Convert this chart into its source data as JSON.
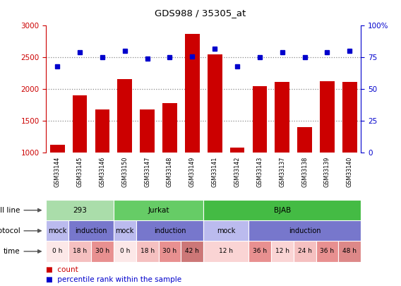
{
  "title": "GDS988 / 35305_at",
  "samples": [
    "GSM33144",
    "GSM33145",
    "GSM33146",
    "GSM33150",
    "GSM33147",
    "GSM33148",
    "GSM33149",
    "GSM33141",
    "GSM33142",
    "GSM33143",
    "GSM33137",
    "GSM33138",
    "GSM33139",
    "GSM33140"
  ],
  "counts": [
    1120,
    1900,
    1680,
    2160,
    1680,
    1780,
    2870,
    2550,
    1080,
    2050,
    2120,
    1400,
    2130,
    2120
  ],
  "percentile_ranks": [
    68,
    79,
    75,
    80,
    74,
    75,
    76,
    82,
    68,
    75,
    79,
    75,
    79,
    80
  ],
  "bar_color": "#cc0000",
  "dot_color": "#0000cc",
  "ylim_left": [
    1000,
    3000
  ],
  "ylim_right": [
    0,
    100
  ],
  "yticks_left": [
    1000,
    1500,
    2000,
    2500,
    3000
  ],
  "yticks_right": [
    0,
    25,
    50,
    75,
    100
  ],
  "hlines": [
    1500,
    2000,
    2500
  ],
  "cell_line_groups": [
    {
      "label": "293",
      "start": 0,
      "end": 3,
      "color": "#aaddaa"
    },
    {
      "label": "Jurkat",
      "start": 3,
      "end": 7,
      "color": "#66cc66"
    },
    {
      "label": "BJAB",
      "start": 7,
      "end": 14,
      "color": "#44bb44"
    }
  ],
  "protocol_groups": [
    {
      "label": "mock",
      "start": 0,
      "end": 1,
      "color": "#bbbbee"
    },
    {
      "label": "induction",
      "start": 1,
      "end": 3,
      "color": "#7777cc"
    },
    {
      "label": "mock",
      "start": 3,
      "end": 4,
      "color": "#bbbbee"
    },
    {
      "label": "induction",
      "start": 4,
      "end": 7,
      "color": "#7777cc"
    },
    {
      "label": "mock",
      "start": 7,
      "end": 9,
      "color": "#bbbbee"
    },
    {
      "label": "induction",
      "start": 9,
      "end": 14,
      "color": "#7777cc"
    }
  ],
  "time_groups": [
    {
      "label": "0 h",
      "start": 0,
      "end": 1,
      "color": "#fce8e8"
    },
    {
      "label": "18 h",
      "start": 1,
      "end": 2,
      "color": "#f5c0c0"
    },
    {
      "label": "30 h",
      "start": 2,
      "end": 3,
      "color": "#e89090"
    },
    {
      "label": "0 h",
      "start": 3,
      "end": 4,
      "color": "#fce8e8"
    },
    {
      "label": "18 h",
      "start": 4,
      "end": 5,
      "color": "#f5c0c0"
    },
    {
      "label": "30 h",
      "start": 5,
      "end": 6,
      "color": "#e89090"
    },
    {
      "label": "42 h",
      "start": 6,
      "end": 7,
      "color": "#cc7777"
    },
    {
      "label": "12 h",
      "start": 7,
      "end": 9,
      "color": "#fad4d4"
    },
    {
      "label": "36 h",
      "start": 9,
      "end": 10,
      "color": "#e89090"
    },
    {
      "label": "12 h",
      "start": 10,
      "end": 11,
      "color": "#fad4d4"
    },
    {
      "label": "24 h",
      "start": 11,
      "end": 12,
      "color": "#f5c0c0"
    },
    {
      "label": "36 h",
      "start": 12,
      "end": 13,
      "color": "#e89090"
    },
    {
      "label": "48 h",
      "start": 13,
      "end": 14,
      "color": "#dd8888"
    }
  ],
  "row_labels": [
    "cell line",
    "protocol",
    "time"
  ],
  "legend_items": [
    {
      "color": "#cc0000",
      "label": "count"
    },
    {
      "color": "#0000cc",
      "label": "percentile rank within the sample"
    }
  ],
  "bg_color": "#ffffff",
  "plot_bg_color": "#ffffff",
  "xtick_bg_color": "#cccccc",
  "left_axis_color": "#cc0000",
  "right_axis_color": "#0000cc",
  "hline_color": "#888888"
}
